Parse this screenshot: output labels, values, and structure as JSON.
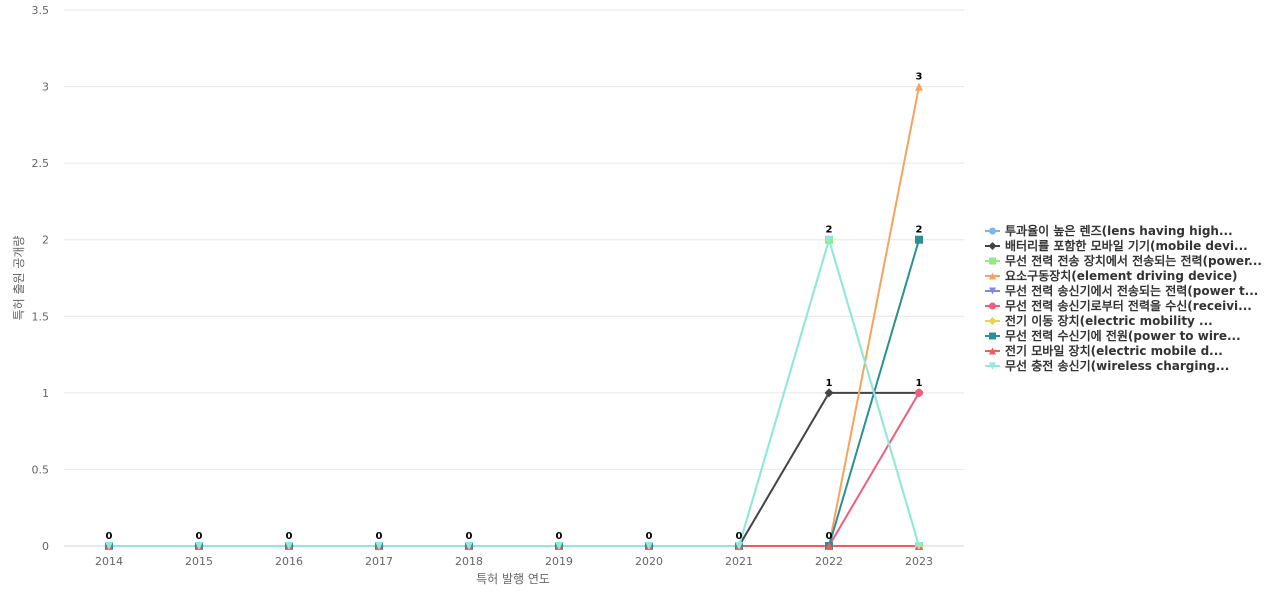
{
  "chart_data": {
    "type": "line",
    "xlabel": "특허 발행 연도",
    "ylabel": "특허 출원 공개량",
    "categories": [
      "2014",
      "2015",
      "2016",
      "2017",
      "2018",
      "2019",
      "2020",
      "2021",
      "2022",
      "2023"
    ],
    "ylim": [
      0,
      3.5
    ],
    "yticks": [
      "0",
      "0.5",
      "1",
      "1.5",
      "2",
      "2.5",
      "3",
      "3.5"
    ],
    "grid": true,
    "legend_position": "right",
    "series": [
      {
        "name": "투과율이 높은 렌즈(lens having high...",
        "color": "#7cb5ec",
        "marker": "circle",
        "values": [
          0,
          0,
          0,
          0,
          0,
          0,
          0,
          0,
          0,
          0
        ]
      },
      {
        "name": "배터리를 포함한 모바일 기기(mobile devi...",
        "color": "#434348",
        "marker": "diamond",
        "values": [
          0,
          0,
          0,
          0,
          0,
          0,
          0,
          0,
          1,
          1
        ]
      },
      {
        "name": "무선 전력 전송 장치에서 전송되는 전력(power...",
        "color": "#90ed7d",
        "marker": "square",
        "values": [
          0,
          0,
          0,
          0,
          0,
          0,
          0,
          0,
          2,
          0
        ]
      },
      {
        "name": "요소구동장치(element driving device)",
        "color": "#f7a35c",
        "marker": "triangle",
        "values": [
          0,
          0,
          0,
          0,
          0,
          0,
          0,
          0,
          0,
          3
        ]
      },
      {
        "name": "무선 전력 송신기에서 전송되는 전력(power t...",
        "color": "#8085e9",
        "marker": "triangle-down",
        "values": [
          0,
          0,
          0,
          0,
          0,
          0,
          0,
          0,
          0,
          0
        ]
      },
      {
        "name": "무선 전력 송신기로부터 전력을 수신(receivi...",
        "color": "#f15c80",
        "marker": "circle",
        "values": [
          0,
          0,
          0,
          0,
          0,
          0,
          0,
          0,
          0,
          1
        ]
      },
      {
        "name": "전기 이동 장치(electric mobility ...",
        "color": "#e4d354",
        "marker": "diamond",
        "values": [
          0,
          0,
          0,
          0,
          0,
          0,
          0,
          0,
          0,
          0
        ]
      },
      {
        "name": "무선 전력 수신기에 전원(power to wire...",
        "color": "#2b908f",
        "marker": "square",
        "values": [
          0,
          0,
          0,
          0,
          0,
          0,
          0,
          0,
          0,
          2
        ]
      },
      {
        "name": "전기 모바일 장치(electric mobile d...",
        "color": "#f45b5b",
        "marker": "triangle",
        "values": [
          0,
          0,
          0,
          0,
          0,
          0,
          0,
          0,
          0,
          0
        ]
      },
      {
        "name": "무선 충전 송신기(wireless charging...",
        "color": "#91e8e1",
        "marker": "triangle-down",
        "values": [
          0,
          0,
          0,
          0,
          0,
          0,
          0,
          0,
          2,
          0
        ]
      }
    ],
    "data_labels": [
      "0",
      "0",
      "0",
      "0",
      "0",
      "0",
      "0",
      "0",
      "2",
      "3"
    ]
  }
}
